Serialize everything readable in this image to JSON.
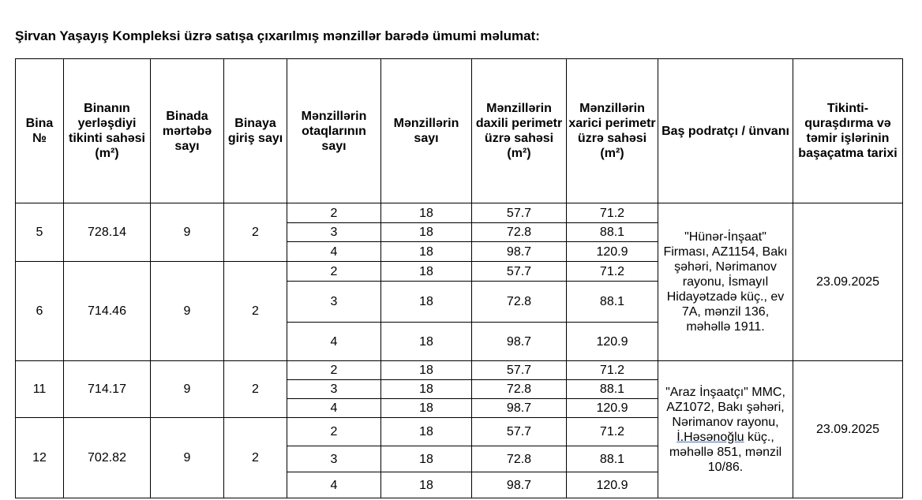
{
  "title": "Şirvan Yaşayış Kompleksi üzrə satışa çıxarılmış mənzillər barədə ümumi məlumat:",
  "headers": [
    "Bina №",
    "Binanın yerləşdiyi tikinti sahəsi (m²)",
    "Binada mərtəbə sayı",
    "Binaya giriş sayı",
    "Mənzillərin otaqlarının sayı",
    "Mənzillərin sayı",
    "Mənzillərin daxili perimetr üzrə sahəsi (m²)",
    "Mənzillərin xarici perimetr üzrə sahəsi (m²)",
    "Baş podratçı / ünvanı",
    "Tikinti-quraşdırma və təmir işlərinin başaçatma tarixi"
  ],
  "buildings": [
    {
      "no": "5",
      "area": "728.14",
      "floors": "9",
      "entrances": "2",
      "rows": [
        [
          "2",
          "18",
          "57.7",
          "71.2"
        ],
        [
          "3",
          "18",
          "72.8",
          "88.1"
        ],
        [
          "4",
          "18",
          "98.7",
          "120.9"
        ]
      ]
    },
    {
      "no": "6",
      "area": "714.46",
      "floors": "9",
      "entrances": "2",
      "rows": [
        [
          "2",
          "18",
          "57.7",
          "71.2"
        ],
        [
          "3",
          "18",
          "72.8",
          "88.1"
        ],
        [
          "4",
          "18",
          "98.7",
          "120.9"
        ]
      ]
    },
    {
      "no": "11",
      "area": "714.17",
      "floors": "9",
      "entrances": "2",
      "rows": [
        [
          "2",
          "18",
          "57.7",
          "71.2"
        ],
        [
          "3",
          "18",
          "72.8",
          "88.1"
        ],
        [
          "4",
          "18",
          "98.7",
          "120.9"
        ]
      ]
    },
    {
      "no": "12",
      "area": "702.82",
      "floors": "9",
      "entrances": "2",
      "rows": [
        [
          "2",
          "18",
          "57.7",
          "71.2"
        ],
        [
          "3",
          "18",
          "72.8",
          "88.1"
        ],
        [
          "4",
          "18",
          "98.7",
          "120.9"
        ]
      ]
    }
  ],
  "contractors": [
    {
      "text": "\"Hünər-İnşaat\" Firması, AZ1154, Bakı şəhəri, Nərimanov rayonu, İsmayıl Hidayətzadə küç., ev 7A, mənzil 136, məhəllə 1911.",
      "date": "23.09.2025"
    },
    {
      "text_pre": "\"Araz İnşaatçı\" MMC, AZ1072, Bakı şəhəri, Nərimanov rayonu, ",
      "text_link": "İ.Həsənoğlu",
      "text_post": " küç., məhəllə 851, mənzil 10/86.",
      "date": "23.09.2025"
    }
  ]
}
